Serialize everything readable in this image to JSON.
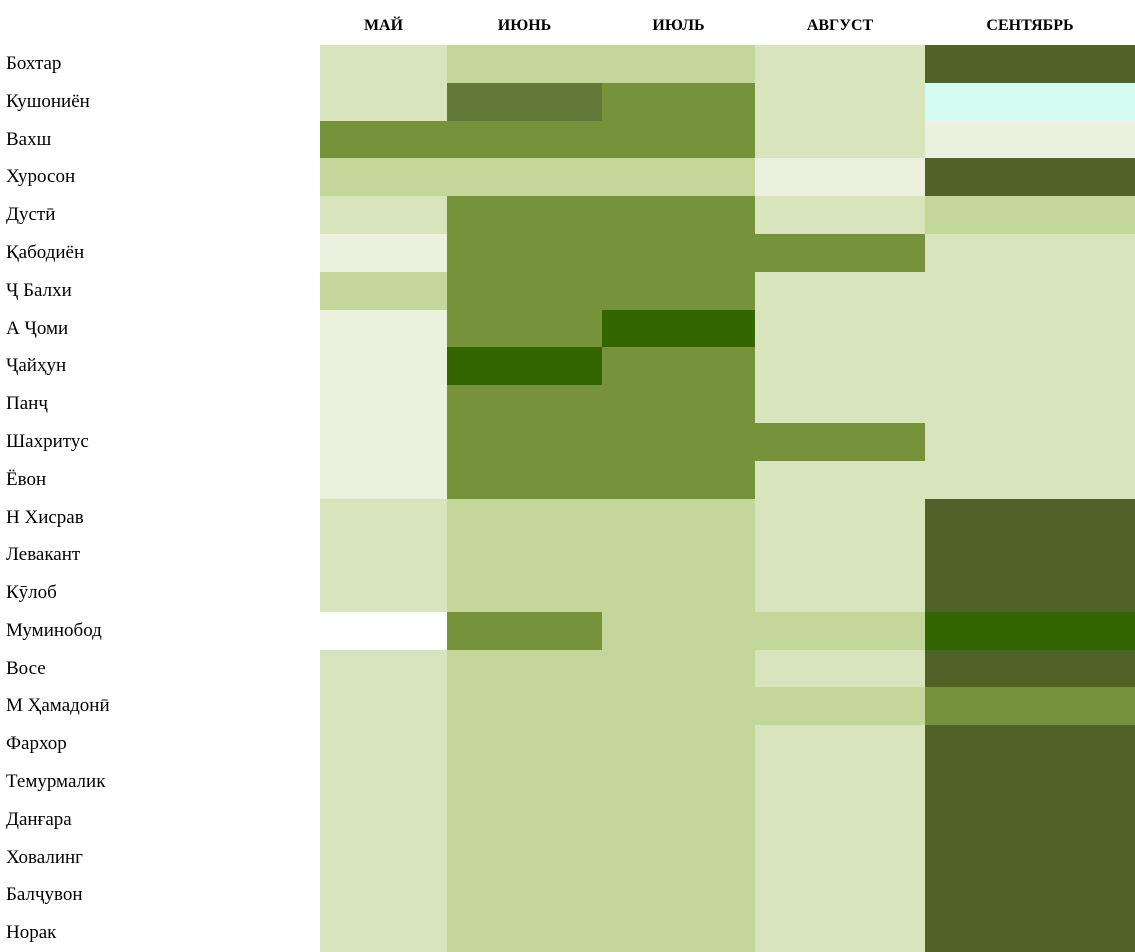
{
  "table": {
    "columns": [
      "МАЙ",
      "ИЮНЬ",
      "ИЮЛЬ",
      "АВГУСТ",
      "СЕНТЯБРЬ"
    ],
    "rows": [
      {
        "name": "Бохтар",
        "colors": [
          "#d8e4bc",
          "#c4d79b",
          "#c4d79b",
          "#d8e4bc",
          "#4f6228"
        ]
      },
      {
        "name": "Кушониён",
        "colors": [
          "#d8e4bc",
          "#62793a",
          "#76933c",
          "#d8e4bc",
          "#d5fcf0"
        ]
      },
      {
        "name": "Вахш",
        "colors": [
          "#76933c",
          "#76933c",
          "#76933c",
          "#d8e4bc",
          "#ebf1de"
        ]
      },
      {
        "name": "Хуросон",
        "colors": [
          "#c4d79b",
          "#c4d79b",
          "#c4d79b",
          "#ebf1de",
          "#4f6228"
        ]
      },
      {
        "name": "Дустӣ",
        "colors": [
          "#d8e4bc",
          "#76933c",
          "#76933c",
          "#d8e4bc",
          "#c4d79b"
        ]
      },
      {
        "name": "Қабодиён",
        "colors": [
          "#ebf1de",
          "#76933c",
          "#76933c",
          "#76933c",
          "#d8e4bc"
        ]
      },
      {
        "name": "Ҷ Балхи",
        "colors": [
          "#c4d79b",
          "#76933c",
          "#76933c",
          "#d8e4bc",
          "#d8e4bc"
        ]
      },
      {
        "name": "А Ҷоми",
        "colors": [
          "#ebf1de",
          "#76933c",
          "#336600",
          "#d8e4bc",
          "#d8e4bc"
        ]
      },
      {
        "name": "Ҷайҳун",
        "colors": [
          "#ebf1de",
          "#336600",
          "#76933c",
          "#d8e4bc",
          "#d8e4bc"
        ]
      },
      {
        "name": "Панҷ",
        "colors": [
          "#ebf1de",
          "#76933c",
          "#76933c",
          "#d8e4bc",
          "#d8e4bc"
        ]
      },
      {
        "name": "Шахритус",
        "colors": [
          "#ebf1de",
          "#76933c",
          "#76933c",
          "#76933c",
          "#d8e4bc"
        ]
      },
      {
        "name": "Ёвон",
        "colors": [
          "#ebf1de",
          "#76933c",
          "#76933c",
          "#d8e4bc",
          "#d8e4bc"
        ]
      },
      {
        "name": "Н Хисрав",
        "colors": [
          "#d8e4bc",
          "#c4d79b",
          "#c4d79b",
          "#d8e4bc",
          "#4f6228"
        ]
      },
      {
        "name": "Левакант",
        "colors": [
          "#d8e4bc",
          "#c4d79b",
          "#c4d79b",
          "#d8e4bc",
          "#4f6228"
        ]
      },
      {
        "name": "Кӯлоб",
        "colors": [
          "#d8e4bc",
          "#c4d79b",
          "#c4d79b",
          "#d8e4bc",
          "#4f6228"
        ]
      },
      {
        "name": "Муминобод",
        "colors": [
          "#ffffff",
          "#76933c",
          "#c4d79b",
          "#c4d79b",
          "#336600"
        ]
      },
      {
        "name": "Восе",
        "colors": [
          "#d8e4bc",
          "#c4d79b",
          "#c4d79b",
          "#d8e4bc",
          "#4f6228"
        ]
      },
      {
        "name": "М Ҳамадонӣ",
        "colors": [
          "#d8e4bc",
          "#c4d79b",
          "#c4d79b",
          "#c4d79b",
          "#76933c"
        ]
      },
      {
        "name": "Фархор",
        "colors": [
          "#d8e4bc",
          "#c4d79b",
          "#c4d79b",
          "#d8e4bc",
          "#4f6228"
        ]
      },
      {
        "name": "Темурмалик",
        "colors": [
          "#d8e4bc",
          "#c4d79b",
          "#c4d79b",
          "#d8e4bc",
          "#4f6228"
        ]
      },
      {
        "name": "Данғара",
        "colors": [
          "#d8e4bc",
          "#c4d79b",
          "#c4d79b",
          "#d8e4bc",
          "#4f6228"
        ]
      },
      {
        "name": "Ховалинг",
        "colors": [
          "#d8e4bc",
          "#c4d79b",
          "#c4d79b",
          "#d8e4bc",
          "#4f6228"
        ]
      },
      {
        "name": "Балҷувон",
        "colors": [
          "#d8e4bc",
          "#c4d79b",
          "#c4d79b",
          "#d8e4bc",
          "#4f6228"
        ]
      },
      {
        "name": "Норак",
        "colors": [
          "#d8e4bc",
          "#c4d79b",
          "#c4d79b",
          "#d8e4bc",
          "#4f6228"
        ]
      }
    ]
  }
}
